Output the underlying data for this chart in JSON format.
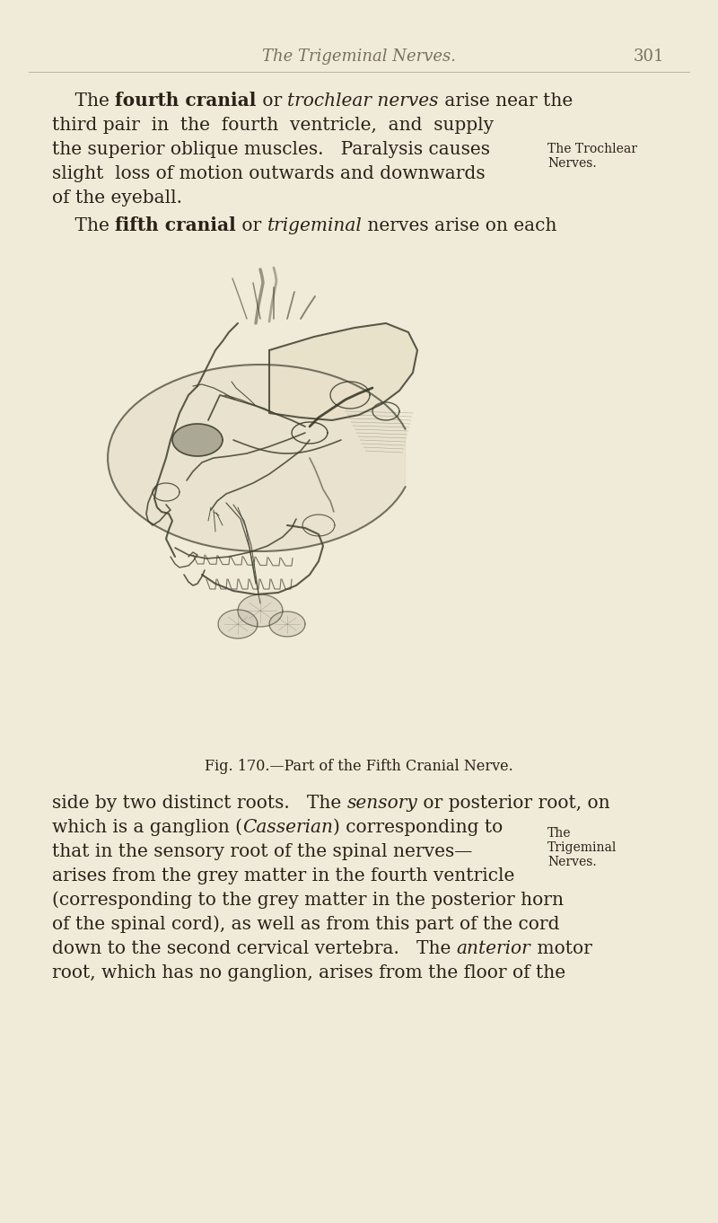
{
  "background_color": "#f0ead8",
  "page_width": 8.0,
  "page_height": 13.62,
  "dpi": 100,
  "header_title": "The Trigeminal Nerves.",
  "header_page": "301",
  "header_color": "#7a7060",
  "body_text_color": "#2a2018",
  "fig_caption": "Fig. 170.—Part of the Fifth Cranial Nerve.",
  "sidebar1_line1": "The Trochlear",
  "sidebar1_line2": "Nerves.",
  "sidebar2_line1": "The",
  "sidebar2_line2": "Trigeminal",
  "sidebar2_line3": "Nerves."
}
